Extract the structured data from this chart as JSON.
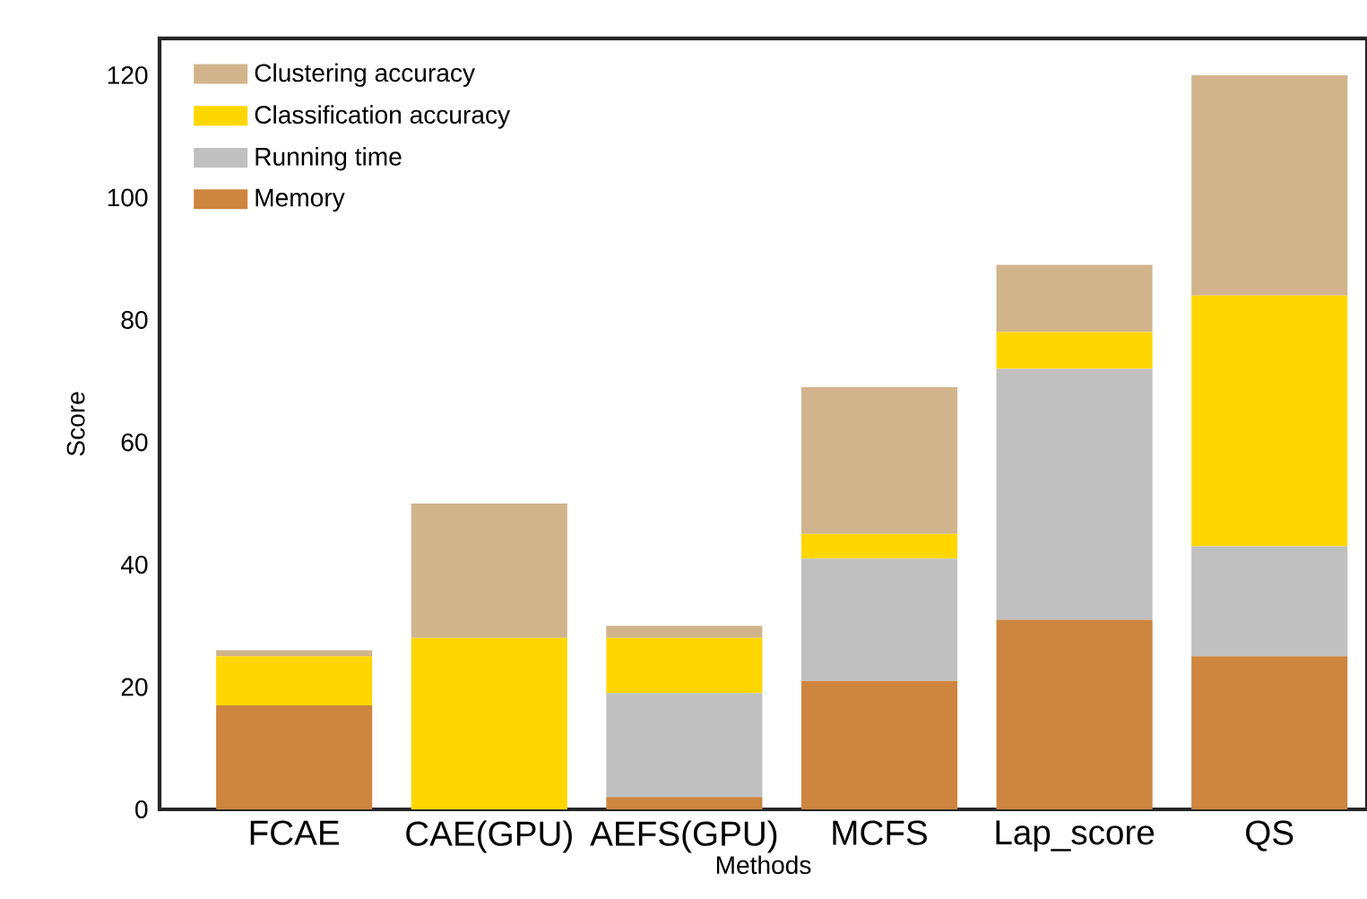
{
  "chart_data": {
    "type": "bar",
    "stacked": true,
    "xlabel": "Methods",
    "ylabel": "Score",
    "categories": [
      "FCAE",
      "CAE(GPU)",
      "AEFS(GPU)",
      "MCFS",
      "Lap_score",
      "QS"
    ],
    "series": [
      {
        "name": "Memory",
        "color": "#cd853f",
        "values": [
          17,
          0,
          2,
          21,
          31,
          25
        ]
      },
      {
        "name": "Running time",
        "color": "#c0c0c0",
        "values": [
          0,
          0,
          17,
          20,
          41,
          18
        ]
      },
      {
        "name": "Classification accuracy",
        "color": "#ffd700",
        "values": [
          8,
          28,
          9,
          4,
          6,
          41
        ]
      },
      {
        "name": "Clustering accuracy",
        "color": "#d2b48c",
        "values": [
          1,
          22,
          2,
          24,
          11,
          36
        ]
      }
    ],
    "ylim": [
      0,
      126
    ],
    "yticks": [
      0,
      20,
      40,
      60,
      80,
      100,
      120
    ],
    "grid": false,
    "legend": "top left"
  }
}
